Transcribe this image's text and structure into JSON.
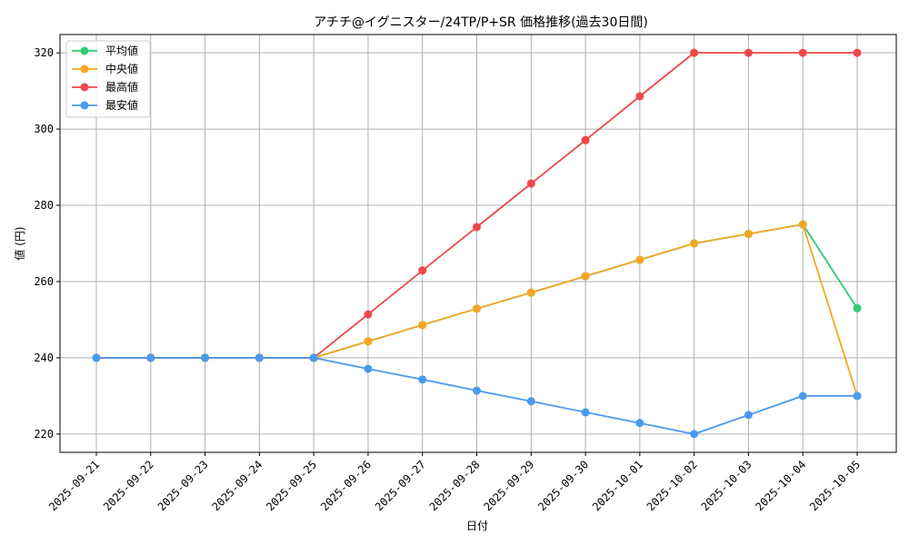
{
  "chart_data": {
    "type": "line",
    "title": "アチチ@イグニスター/24TP/P+SR 価格推移(過去30日間)",
    "xlabel": "日付",
    "ylabel": "値 (円)",
    "ylim": [
      215.2,
      324.8
    ],
    "yticks": [
      220,
      240,
      260,
      280,
      300,
      320
    ],
    "grid": true,
    "legend_position": "top-left",
    "categories": [
      "2025-09-21",
      "2025-09-22",
      "2025-09-23",
      "2025-09-24",
      "2025-09-25",
      "2025-09-26",
      "2025-09-27",
      "2025-09-28",
      "2025-09-29",
      "2025-09-30",
      "2025-10-01",
      "2025-10-02",
      "2025-10-03",
      "2025-10-04",
      "2025-10-05"
    ],
    "series": [
      {
        "name": "平均値",
        "color": "#2ecc71",
        "values": [
          240,
          240,
          240,
          240,
          240,
          244.3,
          248.6,
          252.9,
          257.1,
          261.4,
          265.7,
          270,
          272.5,
          275,
          253
        ]
      },
      {
        "name": "中央値",
        "color": "#f5a623",
        "values": [
          240,
          240,
          240,
          240,
          240,
          244.3,
          248.6,
          252.9,
          257.1,
          261.4,
          265.7,
          270,
          272.5,
          275,
          230
        ]
      },
      {
        "name": "最高値",
        "color": "#f0474a",
        "values": [
          240,
          240,
          240,
          240,
          240,
          251.4,
          262.9,
          274.3,
          285.7,
          297.1,
          308.6,
          320,
          320,
          320,
          320
        ]
      },
      {
        "name": "最安値",
        "color": "#4a9af0",
        "values": [
          240,
          240,
          240,
          240,
          240,
          237.1,
          234.3,
          231.4,
          228.6,
          225.7,
          222.9,
          220,
          225,
          230,
          230
        ]
      }
    ]
  }
}
